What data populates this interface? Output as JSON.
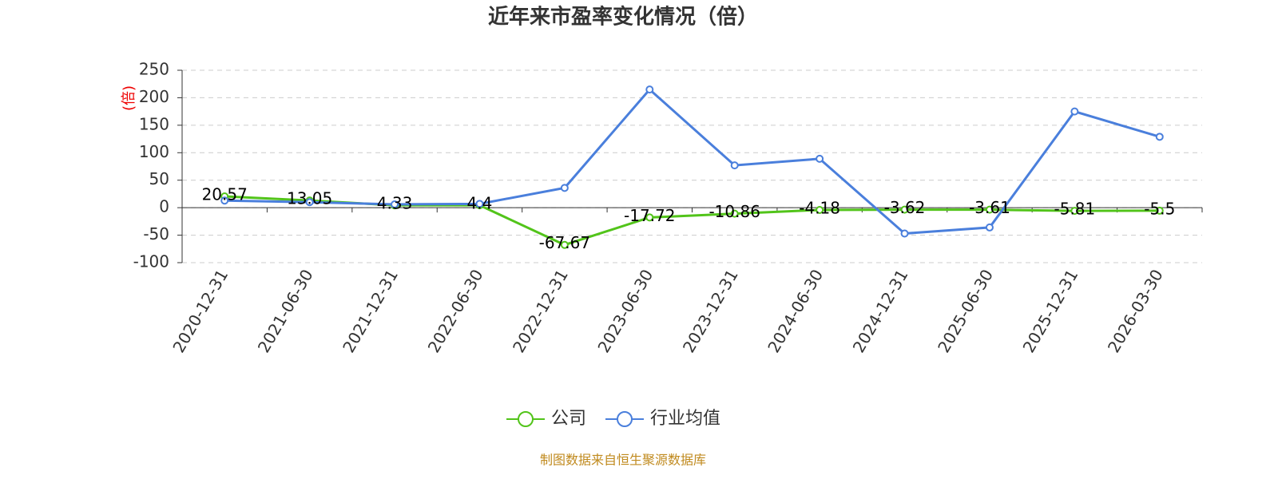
{
  "chart_data": {
    "type": "line",
    "title": "近年来市盈率变化情况（倍）",
    "y_label": "(倍)",
    "categories": [
      "2020-12-31",
      "2021-06-30",
      "2021-12-31",
      "2022-06-30",
      "2022-12-31",
      "2023-06-30",
      "2023-12-31",
      "2024-06-30",
      "2024-12-31",
      "2025-06-30",
      "2025-12-31",
      "2026-03-30"
    ],
    "series": [
      {
        "name": "公司",
        "color": "#52c41a",
        "values": [
          20.57,
          13.05,
          4.33,
          4.4,
          -67.67,
          -17.72,
          -10.86,
          -4.18,
          -3.62,
          -3.61,
          -5.81,
          -5.5
        ]
      },
      {
        "name": "行业均值",
        "color": "#4a7fdc",
        "values": [
          13,
          10,
          6,
          7,
          36,
          215,
          77,
          89,
          -47,
          -36,
          175,
          129
        ]
      }
    ],
    "ylim": [
      -100,
      250
    ],
    "yticks": [
      -100,
      -50,
      0,
      50,
      100,
      150,
      200,
      250
    ],
    "grid": true,
    "source": "制图数据来自恒生聚源数据库"
  }
}
